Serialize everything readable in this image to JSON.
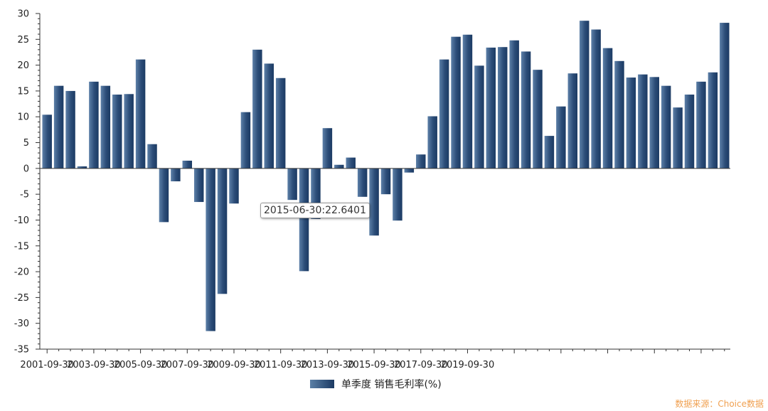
{
  "chart_data": {
    "type": "bar",
    "series": [
      {
        "name": "单季度 销售毛利率(%)",
        "values": [
          10.4,
          16.0,
          15.0,
          0.4,
          16.8,
          16.0,
          14.3,
          14.4,
          21.1,
          4.7,
          -10.4,
          -2.5,
          1.5,
          -6.5,
          -31.5,
          -24.3,
          -6.8,
          10.9,
          23.0,
          20.3,
          17.5,
          -6.1,
          -19.9,
          -9.8,
          7.8,
          0.7,
          2.1,
          -5.5,
          -13.0,
          -5.0,
          -10.1,
          -0.8,
          2.7,
          10.1,
          21.1,
          25.5,
          25.9,
          19.9,
          23.4,
          23.5,
          24.8,
          22.6401,
          19.1,
          6.3,
          12.0,
          18.4,
          28.6,
          26.9,
          23.3,
          20.8,
          17.6,
          18.2,
          17.7,
          16.0,
          11.8,
          14.3,
          16.8,
          18.6,
          28.2
        ]
      }
    ],
    "xtick_labels": [
      "2001-09-30",
      "2003-09-30",
      "2005-09-30",
      "2007-09-30",
      "2009-09-30",
      "2011-09-30",
      "2013-09-30",
      "2015-09-30",
      "2017-09-30",
      "2019-09-30"
    ],
    "first_period": "2001-09-30",
    "period_months": 6,
    "y_ticks": [
      30,
      25,
      20,
      15,
      10,
      5,
      0,
      -5,
      -10,
      -15,
      -20,
      -25,
      -30,
      -35
    ],
    "ylim": [
      -35,
      30
    ],
    "title": "",
    "xlabel": "",
    "ylabel": "",
    "legend_position": "bottom-center",
    "tooltip": {
      "text": "2015-06-30:22.6401"
    }
  },
  "source_label": "数据来源：Choice数据",
  "colors": {
    "bar_top": "#3d5f8d",
    "bar_dark": "#1b3a63",
    "axis": "#333333",
    "source": "#f0a050"
  }
}
